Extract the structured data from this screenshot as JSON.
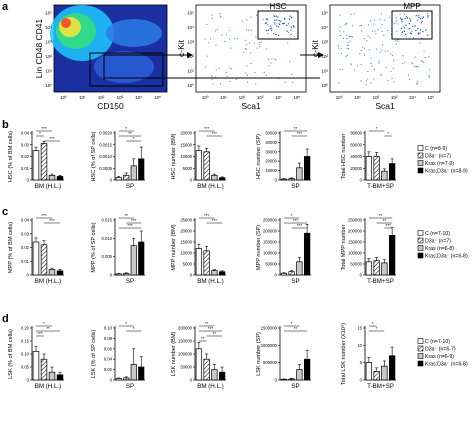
{
  "panel_labels": [
    "a",
    "b",
    "c",
    "d"
  ],
  "flow": {
    "plots": [
      {
        "xlabel": "CD150",
        "ylabel": "Lin CD48 CD41",
        "gate_label": "",
        "xticks": [
          "10⁰",
          "10¹",
          "10²",
          "10³",
          "10⁴",
          "10⁵"
        ],
        "yticks": [
          "10⁵",
          "10⁴",
          "10³",
          "10²",
          "10¹",
          "10⁰"
        ]
      },
      {
        "xlabel": "Sca1",
        "ylabel": "c-Kit",
        "gate_label": "HSC",
        "xticks": [
          "10⁰",
          "10¹",
          "10²",
          "10³",
          "10⁴",
          "10⁵"
        ],
        "yticks": [
          "10⁵",
          "10⁴",
          "10³",
          "10²",
          "10¹",
          "10⁰"
        ]
      },
      {
        "xlabel": "Sca1",
        "ylabel": "c-Kit",
        "gate_label": "MPP",
        "xticks": [
          "10⁰",
          "10¹",
          "10²",
          "10³",
          "10⁴",
          "10⁵"
        ],
        "yticks": [
          "10⁵",
          "10⁴",
          "10³",
          "10²",
          "10¹",
          "10⁰"
        ]
      }
    ]
  },
  "legends": {
    "b": [
      "C (n=8-9)",
      "D3a⁻ (n=7)",
      "Kras (n=7-9)",
      "Kras;D3a⁻ (n=8-9)"
    ],
    "c": [
      "C (n=7-10)",
      "D3a⁻ (n=7)",
      "Kras (n=6-8)",
      "Kras;D3a⁻ (n=6-8)"
    ],
    "d": [
      "C (n=7-10)",
      "D3a⁻ (n=6-7)",
      "Kras (n=6-9)",
      "Kras;D3a⁻ (n=6-8)"
    ]
  },
  "chart_data": [
    {
      "type": "bar",
      "panel": "b",
      "title": "",
      "ylabel": "HSC (% of BM cells)",
      "xlabel": "BM (H.L.)",
      "yticks": [
        "0",
        "0.01",
        "0.02",
        "0.03",
        "0.04"
      ],
      "ylim": [
        0,
        0.04
      ],
      "values": [
        0.025,
        0.031,
        0.004,
        0.003
      ],
      "errors": [
        0.003,
        0.002,
        0.001,
        0.001
      ],
      "sig": [
        {
          "from": 0,
          "to": 2,
          "level": 0,
          "text": "***"
        },
        {
          "from": 0,
          "to": 1,
          "level": 1,
          "text": "*"
        },
        {
          "from": 1,
          "to": 3,
          "level": 2,
          "text": "***"
        }
      ]
    },
    {
      "type": "bar",
      "panel": "b",
      "title": "",
      "ylabel": "HSC (% of SP cells)",
      "xlabel": "SP",
      "yticks": [
        "0",
        "0.0005",
        "0.0010",
        "0.0015",
        "0.0020"
      ],
      "ylim": [
        0,
        0.002
      ],
      "values": [
        0.0001,
        0.0002,
        0.0006,
        0.0009
      ],
      "errors": [
        5e-05,
        0.0001,
        0.0003,
        0.0005
      ],
      "sig": [
        {
          "from": 0,
          "to": 2,
          "level": 0,
          "text": "*"
        },
        {
          "from": 0,
          "to": 3,
          "level": 1,
          "text": "**"
        },
        {
          "from": 1,
          "to": 3,
          "level": 2,
          "text": "*"
        }
      ]
    },
    {
      "type": "bar",
      "panel": "b",
      "title": "",
      "ylabel": "HSC number (BM)",
      "xlabel": "BM (H.L.)",
      "yticks": [
        "0",
        "5000",
        "10000",
        "15000",
        "20000"
      ],
      "ylim": [
        0,
        20000
      ],
      "values": [
        12500,
        12000,
        2000,
        1000
      ],
      "errors": [
        2000,
        1500,
        500,
        300
      ],
      "sig": [
        {
          "from": 0,
          "to": 2,
          "level": 0,
          "text": "***"
        },
        {
          "from": 1,
          "to": 3,
          "level": 1,
          "text": "***"
        }
      ]
    },
    {
      "type": "bar",
      "panel": "b",
      "title": "",
      "ylabel": "HSC number (SP)",
      "xlabel": "SP",
      "yticks": [
        "0",
        "10000",
        "20000",
        "30000",
        "40000",
        "50000"
      ],
      "ylim": [
        0,
        50000
      ],
      "values": [
        1000,
        1500,
        13000,
        25000
      ],
      "errors": [
        500,
        700,
        5000,
        8000
      ],
      "sig": [
        {
          "from": 0,
          "to": 3,
          "level": 0,
          "text": "**"
        },
        {
          "from": 1,
          "to": 3,
          "level": 1,
          "text": "***"
        }
      ]
    },
    {
      "type": "bar",
      "panel": "b",
      "title": "",
      "ylabel": "Total HSC number",
      "xlabel": "T-BM+SP",
      "yticks": [
        "0",
        "20000",
        "40000",
        "60000",
        "80000"
      ],
      "ylim": [
        0,
        80000
      ],
      "values": [
        40000,
        40000,
        15000,
        28000
      ],
      "errors": [
        8000,
        7000,
        4000,
        8000
      ],
      "sig": [
        {
          "from": 0,
          "to": 2,
          "level": 0,
          "text": "*"
        },
        {
          "from": 2,
          "to": 3,
          "level": 1,
          "text": "*"
        }
      ]
    },
    {
      "type": "bar",
      "panel": "c",
      "title": "",
      "ylabel": "MPP (% of BM cells)",
      "xlabel": "BM (H.L.)",
      "yticks": [
        "0",
        "0.01",
        "0.02",
        "0.03",
        "0.04"
      ],
      "ylim": [
        0,
        0.04
      ],
      "values": [
        0.024,
        0.022,
        0.004,
        0.003
      ],
      "errors": [
        0.003,
        0.003,
        0.001,
        0.001
      ],
      "sig": [
        {
          "from": 0,
          "to": 2,
          "level": 0,
          "text": "***"
        },
        {
          "from": 1,
          "to": 3,
          "level": 1,
          "text": "***"
        }
      ]
    },
    {
      "type": "bar",
      "panel": "c",
      "title": "",
      "ylabel": "MPP (% of SP cells)",
      "xlabel": "SP",
      "yticks": [
        "0",
        "0.005",
        "0.010",
        "0.015"
      ],
      "ylim": [
        0,
        0.015
      ],
      "values": [
        0.0003,
        0.0004,
        0.008,
        0.009
      ],
      "errors": [
        0.0001,
        0.0002,
        0.002,
        0.003
      ],
      "sig": [
        {
          "from": 0,
          "to": 2,
          "level": 0,
          "text": "**"
        },
        {
          "from": 1,
          "to": 3,
          "level": 1,
          "text": "***"
        },
        {
          "from": 0,
          "to": 3,
          "level": 2,
          "text": "***"
        }
      ]
    },
    {
      "type": "bar",
      "panel": "c",
      "title": "",
      "ylabel": "MPP number (BM)",
      "xlabel": "BM (H.L.)",
      "yticks": [
        "0",
        "5000",
        "10000",
        "15000",
        "20000",
        "25000"
      ],
      "ylim": [
        0,
        25000
      ],
      "values": [
        12000,
        11000,
        2000,
        1500
      ],
      "errors": [
        2000,
        2000,
        500,
        400
      ],
      "sig": [
        {
          "from": 0,
          "to": 2,
          "level": 0,
          "text": "***"
        },
        {
          "from": 1,
          "to": 3,
          "level": 1,
          "text": "***"
        }
      ]
    },
    {
      "type": "bar",
      "panel": "c",
      "title": "",
      "ylabel": "MPP number (SP)",
      "xlabel": "SP",
      "yticks": [
        "0",
        "50000",
        "100000",
        "150000",
        "200000",
        "250000"
      ],
      "ylim": [
        0,
        250000
      ],
      "values": [
        8000,
        15000,
        60000,
        190000
      ],
      "errors": [
        3000,
        5000,
        20000,
        40000
      ],
      "sig": [
        {
          "from": 0,
          "to": 2,
          "level": 0,
          "text": "*"
        },
        {
          "from": 0,
          "to": 3,
          "level": 1,
          "text": "***"
        },
        {
          "from": 1,
          "to": 3,
          "level": 2,
          "text": "***"
        }
      ]
    },
    {
      "type": "bar",
      "panel": "c",
      "title": "",
      "ylabel": "Total MPP number",
      "xlabel": "T-BM+SP",
      "yticks": [
        "0",
        "50000",
        "100000",
        "150000",
        "200000",
        "250000"
      ],
      "ylim": [
        0,
        250000
      ],
      "values": [
        60000,
        65000,
        55000,
        180000
      ],
      "errors": [
        15000,
        15000,
        15000,
        35000
      ],
      "sig": [
        {
          "from": 0,
          "to": 3,
          "level": 0,
          "text": "**"
        },
        {
          "from": 1,
          "to": 3,
          "level": 1,
          "text": "**"
        },
        {
          "from": 2,
          "to": 3,
          "level": 2,
          "text": "***"
        }
      ]
    },
    {
      "type": "bar",
      "panel": "d",
      "title": "",
      "ylabel": "LSK (% of BM cells)",
      "xlabel": "BM (H.L.)",
      "yticks": [
        "0",
        "0.05",
        "0.10",
        "0.15",
        "0.20"
      ],
      "ylim": [
        0,
        0.2
      ],
      "values": [
        0.11,
        0.08,
        0.03,
        0.02
      ],
      "errors": [
        0.02,
        0.02,
        0.02,
        0.01
      ],
      "sig": [
        {
          "from": 0,
          "to": 2,
          "level": 0,
          "text": "*"
        },
        {
          "from": 0,
          "to": 3,
          "level": 1,
          "text": "**"
        },
        {
          "from": 0,
          "to": 1,
          "level": 2,
          "text": "***"
        }
      ]
    },
    {
      "type": "bar",
      "panel": "d",
      "title": "",
      "ylabel": "LSK (% of SP cells)",
      "xlabel": "SP",
      "yticks": [
        "0",
        "0.02",
        "0.04",
        "0.06",
        "0.08",
        "0.10"
      ],
      "ylim": [
        0,
        0.1
      ],
      "values": [
        0.003,
        0.004,
        0.03,
        0.025
      ],
      "errors": [
        0.001,
        0.002,
        0.03,
        0.02
      ],
      "sig": [
        {
          "from": 0,
          "to": 2,
          "level": 0,
          "text": "*"
        },
        {
          "from": 1,
          "to": 3,
          "level": 1,
          "text": "*"
        }
      ]
    },
    {
      "type": "bar",
      "panel": "d",
      "title": "",
      "ylabel": "LSK number (BM)",
      "xlabel": "BM (H.L.)",
      "yticks": [
        "0",
        "50000",
        "100000",
        "150000",
        "200000"
      ],
      "ylim": [
        0,
        200000
      ],
      "values": [
        120000,
        80000,
        40000,
        30000
      ],
      "errors": [
        25000,
        20000,
        20000,
        20000
      ],
      "sig": [
        {
          "from": 0,
          "to": 2,
          "level": 0,
          "text": "**"
        },
        {
          "from": 0,
          "to": 3,
          "level": 1,
          "text": "***"
        },
        {
          "from": 1,
          "to": 3,
          "level": 2,
          "text": "**"
        },
        {
          "from": 0,
          "to": 1,
          "level": 3,
          "text": "**"
        }
      ]
    },
    {
      "type": "bar",
      "panel": "d",
      "title": "",
      "ylabel": "LSK number (SP)",
      "xlabel": "SP",
      "yticks": [
        "0",
        "500000",
        "1000000",
        "1500000"
      ],
      "ylim": [
        0,
        1500000
      ],
      "values": [
        20000,
        30000,
        300000,
        600000
      ],
      "errors": [
        10000,
        15000,
        150000,
        250000
      ],
      "sig": [
        {
          "from": 0,
          "to": 2,
          "level": 0,
          "text": "*"
        },
        {
          "from": 0,
          "to": 3,
          "level": 1,
          "text": "**"
        }
      ]
    },
    {
      "type": "bar",
      "panel": "d",
      "title": "",
      "ylabel": "Total LSK number (X10⁵)",
      "xlabel": "T-BM+SP",
      "yticks": [
        "0",
        "5",
        "10",
        "15"
      ],
      "ylim": [
        0,
        15
      ],
      "values": [
        5,
        2.5,
        4,
        7
      ],
      "errors": [
        1.5,
        1,
        1.5,
        2.5
      ],
      "sig": [
        {
          "from": 0,
          "to": 1,
          "level": 0,
          "text": "*"
        },
        {
          "from": 0,
          "to": 2,
          "level": 1,
          "text": "*"
        }
      ]
    }
  ]
}
